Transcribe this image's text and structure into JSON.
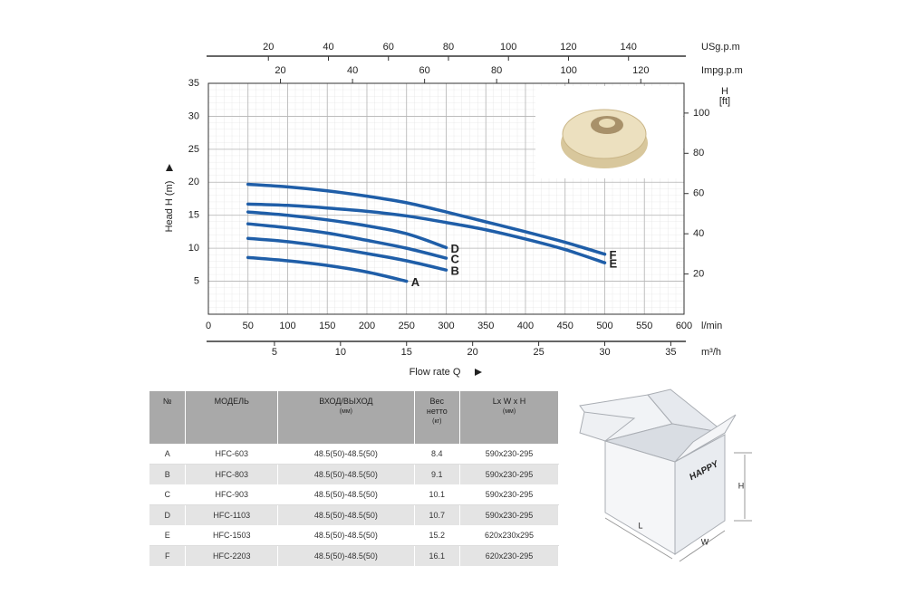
{
  "chart_data": {
    "type": "line",
    "ylabel": "Head H (m)",
    "y2label": [
      "H",
      "[ft]"
    ],
    "xlabel": "Flow rate Q",
    "xunit": "l/min",
    "xlim": [
      0,
      600
    ],
    "xticks": [
      0,
      50,
      100,
      150,
      200,
      250,
      300,
      350,
      400,
      450,
      500,
      550,
      600
    ],
    "ylim": [
      0,
      35
    ],
    "yticks": [
      5,
      10,
      15,
      20,
      25,
      30,
      35
    ],
    "y2lim": [
      0,
      114.8
    ],
    "y2ticks": [
      20,
      40,
      60,
      80,
      100
    ],
    "grid": true,
    "series": [
      {
        "name": "F",
        "color": "#1f5ea8",
        "x": [
          50,
          100,
          150,
          200,
          250,
          300,
          350,
          400,
          450,
          500
        ],
        "values": [
          19.7,
          19.3,
          18.7,
          17.9,
          16.9,
          15.5,
          14.0,
          12.5,
          10.9,
          9.1
        ]
      },
      {
        "name": "E",
        "color": "#1f5ea8",
        "x": [
          50,
          100,
          150,
          200,
          250,
          300,
          350,
          400,
          450,
          500
        ],
        "values": [
          16.7,
          16.5,
          16.1,
          15.6,
          14.9,
          13.9,
          12.8,
          11.4,
          9.8,
          7.8
        ]
      },
      {
        "name": "D",
        "color": "#1f5ea8",
        "x": [
          50,
          100,
          150,
          200,
          250,
          300
        ],
        "values": [
          15.5,
          15.0,
          14.3,
          13.4,
          12.2,
          10.1
        ]
      },
      {
        "name": "C",
        "color": "#1f5ea8",
        "x": [
          50,
          100,
          150,
          200,
          250,
          300
        ],
        "values": [
          13.7,
          13.1,
          12.3,
          11.2,
          10.0,
          8.5
        ]
      },
      {
        "name": "B",
        "color": "#1f5ea8",
        "x": [
          50,
          100,
          150,
          200,
          250,
          300
        ],
        "values": [
          11.5,
          11.0,
          10.2,
          9.2,
          8.1,
          6.7
        ]
      },
      {
        "name": "A",
        "color": "#1f5ea8",
        "x": [
          50,
          100,
          150,
          200,
          250
        ],
        "values": [
          8.6,
          8.1,
          7.4,
          6.4,
          5.0
        ]
      }
    ],
    "extra_x_axes": [
      {
        "label": "USg.p.m",
        "position": "top",
        "xlim": [
          0,
          158.5
        ],
        "xticks": [
          20,
          40,
          60,
          80,
          100,
          120,
          140
        ]
      },
      {
        "label": "Impg.p.m",
        "position": "top",
        "xlim": [
          0,
          132
        ],
        "xticks": [
          20,
          40,
          60,
          80,
          100,
          120
        ]
      },
      {
        "label": "m³/h",
        "position": "bottom",
        "xlim": [
          0,
          36
        ],
        "xticks": [
          5,
          10,
          15,
          20,
          25,
          30,
          35
        ]
      }
    ]
  },
  "table": {
    "header": [
      [
        "№"
      ],
      [
        "МОДЕЛЬ"
      ],
      [
        "ВХОД/ВЫХОД",
        "(мм)"
      ],
      [
        "Вес",
        "нетто",
        "(кг)"
      ],
      [
        "Lx W x H",
        "(мм)"
      ]
    ],
    "rows": [
      [
        "A",
        "HFC-603",
        "48.5(50)-48.5(50)",
        "8.4",
        "590x230-295"
      ],
      [
        "B",
        "HFC-803",
        "48.5(50)-48.5(50)",
        "9.1",
        "590x230-295"
      ],
      [
        "C",
        "HFC-903",
        "48.5(50)-48.5(50)",
        "10.1",
        "590x230-295"
      ],
      [
        "D",
        "HFC-1103",
        "48.5(50)-48.5(50)",
        "10.7",
        "590x230-295"
      ],
      [
        "E",
        "HFC-1503",
        "48.5(50)-48.5(50)",
        "15.2",
        "620x230x295"
      ],
      [
        "F",
        "HFC-2203",
        "48.5(50)-48.5(50)",
        "16.1",
        "620x230-295"
      ]
    ]
  },
  "box": {
    "brand": "HAPPY",
    "dims": [
      "H",
      "L",
      "W"
    ]
  }
}
